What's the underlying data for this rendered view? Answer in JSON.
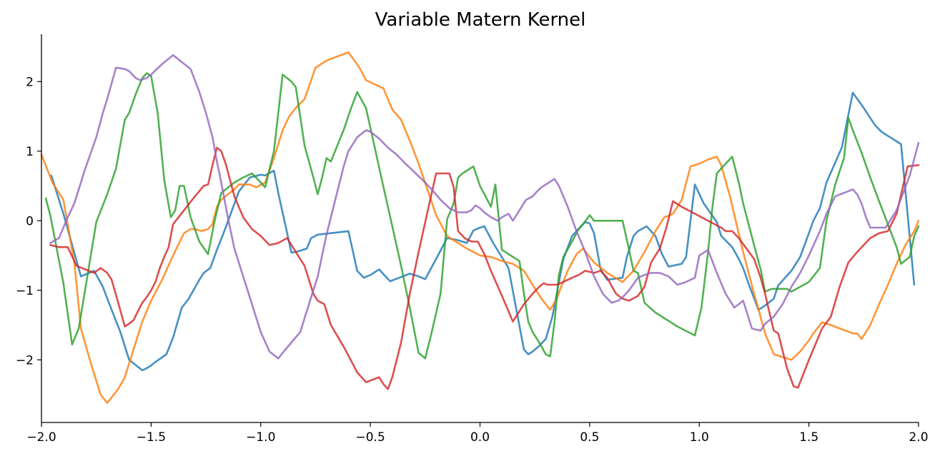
{
  "chart_data": {
    "type": "line",
    "title": "Variable Matern Kernel",
    "xlabel": "",
    "ylabel": "",
    "xlim": [
      -2.0,
      2.0
    ],
    "ylim": [
      -2.9,
      2.68
    ],
    "grid": false,
    "x_ticks": [
      -2.0,
      -1.5,
      -1.0,
      -0.5,
      0.0,
      0.5,
      1.0,
      1.5,
      2.0
    ],
    "x_tick_labels": [
      "−2.0",
      "−1.5",
      "−1.0",
      "−0.5",
      "0.0",
      "0.5",
      "1.0",
      "1.5",
      "2.0"
    ],
    "y_ticks": [
      -2,
      -1,
      0,
      1,
      2
    ],
    "y_tick_labels": [
      "−2",
      "−1",
      "0",
      "1",
      "2"
    ],
    "colors": {
      "blue": "#1f77b4",
      "orange": "#ff7f0e",
      "green": "#2ca02c",
      "red": "#d62728",
      "purple": "#9467bd"
    },
    "series": [
      {
        "color": "#1f77b4",
        "x": [
          -1.955,
          -1.9,
          -1.82,
          -1.76,
          -1.72,
          -1.69,
          -1.64,
          -1.6,
          -1.54,
          -1.52,
          -1.5,
          -1.48,
          -1.43,
          -1.4,
          -1.36,
          -1.33,
          -1.28,
          -1.26,
          -1.23,
          -1.2,
          -1.16,
          -1.1,
          -1.05,
          -1.0,
          -0.98,
          -0.94,
          -0.92,
          -0.86,
          -0.83,
          -0.79,
          -0.77,
          -0.74,
          -0.6,
          -0.56,
          -0.53,
          -0.5,
          -0.46,
          -0.44,
          -0.41,
          -0.36,
          -0.32,
          -0.28,
          -0.25,
          -0.2,
          -0.15,
          -0.1,
          -0.06,
          -0.03,
          0.0,
          0.02,
          0.06,
          0.13,
          0.2,
          0.22,
          0.24,
          0.27,
          0.3,
          0.33,
          0.38,
          0.42,
          0.46,
          0.48,
          0.5,
          0.52,
          0.55,
          0.58,
          0.65,
          0.67,
          0.7,
          0.72,
          0.76,
          0.8,
          0.83,
          0.86,
          0.92,
          0.94,
          0.98,
          1.02,
          1.08,
          1.1,
          1.15,
          1.18,
          1.2,
          1.23,
          1.27,
          1.3,
          1.34,
          1.36,
          1.42,
          1.46,
          1.5,
          1.52,
          1.55,
          1.58,
          1.65,
          1.7,
          1.75,
          1.8,
          1.83,
          1.87,
          1.92,
          1.98
        ],
        "values": [
          0.65,
          0.1,
          -0.8,
          -0.72,
          -0.95,
          -1.2,
          -1.6,
          -2.0,
          -2.15,
          -2.12,
          -2.08,
          -2.03,
          -1.92,
          -1.68,
          -1.25,
          -1.13,
          -0.85,
          -0.75,
          -0.68,
          -0.42,
          -0.1,
          0.42,
          0.62,
          0.66,
          0.65,
          0.72,
          0.4,
          -0.46,
          -0.44,
          -0.4,
          -0.25,
          -0.2,
          -0.15,
          -0.72,
          -0.82,
          -0.78,
          -0.7,
          -0.77,
          -0.87,
          -0.81,
          -0.76,
          -0.8,
          -0.84,
          -0.55,
          -0.25,
          -0.28,
          -0.32,
          -0.14,
          -0.1,
          -0.08,
          -0.32,
          -0.68,
          -1.85,
          -1.92,
          -1.88,
          -1.8,
          -1.7,
          -1.38,
          -0.55,
          -0.22,
          -0.08,
          -0.02,
          -0.04,
          -0.18,
          -0.7,
          -0.85,
          -0.82,
          -0.52,
          -0.22,
          -0.15,
          -0.08,
          -0.22,
          -0.48,
          -0.66,
          -0.62,
          -0.52,
          0.52,
          0.25,
          -0.02,
          -0.22,
          -0.38,
          -0.55,
          -0.68,
          -0.95,
          -1.28,
          -1.22,
          -1.12,
          -0.93,
          -0.72,
          -0.52,
          -0.18,
          0.0,
          0.18,
          0.55,
          1.05,
          1.84,
          1.62,
          1.38,
          1.28,
          1.2,
          1.1,
          -0.92
        ]
      },
      {
        "color": "#ff7f0e",
        "x": [
          -2.0,
          -1.95,
          -1.9,
          -1.85,
          -1.82,
          -1.77,
          -1.73,
          -1.7,
          -1.65,
          -1.62,
          -1.58,
          -1.54,
          -1.5,
          -1.45,
          -1.4,
          -1.35,
          -1.32,
          -1.3,
          -1.27,
          -1.24,
          -1.22,
          -1.2,
          -1.18,
          -1.15,
          -1.12,
          -1.1,
          -1.05,
          -1.02,
          -0.98,
          -0.94,
          -0.9,
          -0.87,
          -0.84,
          -0.8,
          -0.75,
          -0.7,
          -0.66,
          -0.6,
          -0.55,
          -0.52,
          -0.44,
          -0.4,
          -0.36,
          -0.32,
          -0.28,
          -0.24,
          -0.2,
          -0.15,
          -0.1,
          -0.06,
          0.0,
          0.05,
          0.1,
          0.15,
          0.18,
          0.2,
          0.24,
          0.28,
          0.32,
          0.35,
          0.37,
          0.4,
          0.44,
          0.47,
          0.5,
          0.52,
          0.58,
          0.65,
          0.7,
          0.75,
          0.8,
          0.84,
          0.86,
          0.88,
          0.92,
          0.96,
          1.0,
          1.04,
          1.08,
          1.1,
          1.14,
          1.2,
          1.25,
          1.3,
          1.34,
          1.38,
          1.42,
          1.46,
          1.5,
          1.52,
          1.56,
          1.6,
          1.65,
          1.7,
          1.72,
          1.74,
          1.78,
          1.82,
          1.86,
          1.9,
          1.94,
          1.98,
          2.0
        ],
        "values": [
          0.95,
          0.55,
          0.3,
          -0.6,
          -1.55,
          -2.1,
          -2.5,
          -2.62,
          -2.42,
          -2.25,
          -1.85,
          -1.45,
          -1.15,
          -0.85,
          -0.5,
          -0.18,
          -0.12,
          -0.12,
          -0.15,
          -0.12,
          -0.05,
          0.2,
          0.3,
          0.38,
          0.45,
          0.52,
          0.52,
          0.48,
          0.55,
          0.9,
          1.3,
          1.5,
          1.62,
          1.75,
          2.2,
          2.3,
          2.35,
          2.42,
          2.2,
          2.02,
          1.9,
          1.6,
          1.45,
          1.15,
          0.82,
          0.45,
          0.08,
          -0.22,
          -0.32,
          -0.4,
          -0.5,
          -0.52,
          -0.58,
          -0.62,
          -0.68,
          -0.72,
          -0.92,
          -1.12,
          -1.28,
          -1.12,
          -0.95,
          -0.72,
          -0.48,
          -0.4,
          -0.52,
          -0.6,
          -0.75,
          -0.88,
          -0.72,
          -0.45,
          -0.15,
          0.05,
          0.07,
          0.1,
          0.3,
          0.78,
          0.82,
          0.88,
          0.92,
          0.8,
          0.35,
          -0.45,
          -1.05,
          -1.62,
          -1.92,
          -1.96,
          -2.0,
          -1.88,
          -1.72,
          -1.62,
          -1.46,
          -1.5,
          -1.56,
          -1.62,
          -1.62,
          -1.7,
          -1.5,
          -1.2,
          -0.92,
          -0.62,
          -0.35,
          -0.15,
          0.0
        ]
      },
      {
        "color": "#2ca02c",
        "x": [
          -1.98,
          -1.96,
          -1.9,
          -1.86,
          -1.83,
          -1.8,
          -1.75,
          -1.7,
          -1.66,
          -1.62,
          -1.6,
          -1.57,
          -1.54,
          -1.52,
          -1.5,
          -1.47,
          -1.44,
          -1.41,
          -1.39,
          -1.37,
          -1.35,
          -1.32,
          -1.28,
          -1.24,
          -1.21,
          -1.18,
          -1.12,
          -1.08,
          -1.04,
          -1.0,
          -0.98,
          -0.94,
          -0.9,
          -0.86,
          -0.84,
          -0.8,
          -0.76,
          -0.74,
          -0.72,
          -0.7,
          -0.68,
          -0.62,
          -0.59,
          -0.56,
          -0.52,
          -0.48,
          -0.44,
          -0.4,
          -0.36,
          -0.32,
          -0.28,
          -0.25,
          -0.22,
          -0.18,
          -0.15,
          -0.12,
          -0.1,
          -0.08,
          -0.06,
          -0.03,
          0.0,
          0.02,
          0.05,
          0.07,
          0.1,
          0.15,
          0.18,
          0.2,
          0.22,
          0.24,
          0.27,
          0.3,
          0.32,
          0.34,
          0.36,
          0.38,
          0.42,
          0.45,
          0.47,
          0.5,
          0.52,
          0.55,
          0.6,
          0.65,
          0.68,
          0.7,
          0.72,
          0.75,
          0.8,
          0.85,
          0.9,
          0.98,
          1.01,
          1.04,
          1.06,
          1.08,
          1.12,
          1.15,
          1.18,
          1.2,
          1.25,
          1.28,
          1.3,
          1.33,
          1.38,
          1.4,
          1.42,
          1.46,
          1.5,
          1.52,
          1.55,
          1.58,
          1.62,
          1.66,
          1.68,
          1.7,
          1.74,
          1.78,
          1.82,
          1.86,
          1.9,
          1.92,
          1.96,
          1.98,
          2.0
        ],
        "values": [
          0.32,
          0.08,
          -0.9,
          -1.78,
          -1.55,
          -0.98,
          -0.02,
          0.38,
          0.75,
          1.45,
          1.55,
          1.82,
          2.05,
          2.12,
          2.08,
          1.55,
          0.58,
          0.05,
          0.15,
          0.5,
          0.5,
          0.05,
          -0.3,
          -0.48,
          0.0,
          0.4,
          0.55,
          0.62,
          0.68,
          0.55,
          0.48,
          1.0,
          2.1,
          2.0,
          1.92,
          1.08,
          0.62,
          0.38,
          0.62,
          0.9,
          0.85,
          1.32,
          1.6,
          1.85,
          1.62,
          1.05,
          0.48,
          -0.08,
          -0.65,
          -1.25,
          -1.9,
          -1.98,
          -1.6,
          -1.05,
          0.02,
          0.25,
          0.62,
          0.68,
          0.72,
          0.78,
          0.5,
          0.38,
          0.2,
          0.52,
          -0.42,
          -0.52,
          -0.58,
          -1.05,
          -1.45,
          -1.6,
          -1.75,
          -1.92,
          -1.95,
          -1.45,
          -0.78,
          -0.52,
          -0.3,
          -0.12,
          -0.05,
          0.08,
          0.0,
          0.0,
          0.0,
          0.0,
          -0.42,
          -0.72,
          -0.75,
          -1.18,
          -1.32,
          -1.42,
          -1.52,
          -1.65,
          -1.25,
          -0.45,
          0.2,
          0.68,
          0.82,
          0.92,
          0.55,
          0.25,
          -0.35,
          -0.7,
          -1.02,
          -0.98,
          -0.98,
          -0.98,
          -1.02,
          -0.95,
          -0.88,
          -0.8,
          -0.68,
          0.0,
          0.52,
          0.9,
          1.48,
          1.3,
          0.98,
          0.62,
          0.28,
          -0.05,
          -0.38,
          -0.62,
          -0.52,
          -0.22,
          -0.08
        ]
      },
      {
        "color": "#d62728",
        "x": [
          -1.96,
          -1.92,
          -1.88,
          -1.84,
          -1.8,
          -1.76,
          -1.73,
          -1.7,
          -1.68,
          -1.65,
          -1.62,
          -1.6,
          -1.58,
          -1.56,
          -1.54,
          -1.52,
          -1.5,
          -1.48,
          -1.46,
          -1.44,
          -1.42,
          -1.4,
          -1.35,
          -1.3,
          -1.26,
          -1.24,
          -1.22,
          -1.2,
          -1.18,
          -1.16,
          -1.12,
          -1.08,
          -1.04,
          -1.0,
          -0.96,
          -0.92,
          -0.88,
          -0.84,
          -0.8,
          -0.76,
          -0.74,
          -0.71,
          -0.68,
          -0.62,
          -0.56,
          -0.52,
          -0.46,
          -0.44,
          -0.42,
          -0.4,
          -0.36,
          -0.32,
          -0.28,
          -0.24,
          -0.2,
          -0.18,
          -0.14,
          -0.12,
          -0.1,
          -0.07,
          -0.04,
          -0.01,
          0.02,
          0.05,
          0.1,
          0.15,
          0.2,
          0.24,
          0.27,
          0.29,
          0.31,
          0.35,
          0.38,
          0.42,
          0.45,
          0.48,
          0.52,
          0.55,
          0.58,
          0.62,
          0.65,
          0.68,
          0.72,
          0.75,
          0.78,
          0.82,
          0.85,
          0.88,
          0.92,
          0.98,
          1.04,
          1.1,
          1.12,
          1.15,
          1.18,
          1.22,
          1.25,
          1.28,
          1.3,
          1.32,
          1.34,
          1.36,
          1.4,
          1.43,
          1.45,
          1.5,
          1.56,
          1.6,
          1.64,
          1.68,
          1.72,
          1.78,
          1.82,
          1.86,
          1.9,
          1.95,
          2.0
        ],
        "values": [
          -0.35,
          -0.38,
          -0.38,
          -0.65,
          -0.7,
          -0.75,
          -0.68,
          -0.75,
          -0.85,
          -1.18,
          -1.52,
          -1.48,
          -1.43,
          -1.3,
          -1.18,
          -1.1,
          -1.0,
          -0.88,
          -0.68,
          -0.52,
          -0.38,
          -0.05,
          0.15,
          0.35,
          0.5,
          0.52,
          0.8,
          1.05,
          1.0,
          0.82,
          0.35,
          0.05,
          -0.12,
          -0.22,
          -0.35,
          -0.32,
          -0.25,
          -0.45,
          -0.65,
          -1.05,
          -1.15,
          -1.2,
          -1.5,
          -1.82,
          -2.18,
          -2.32,
          -2.25,
          -2.35,
          -2.42,
          -2.25,
          -1.75,
          -1.05,
          -0.45,
          0.12,
          0.68,
          0.68,
          0.68,
          0.48,
          -0.15,
          -0.25,
          -0.3,
          -0.3,
          -0.48,
          -0.72,
          -1.08,
          -1.45,
          -1.2,
          -1.05,
          -0.95,
          -0.9,
          -0.92,
          -0.92,
          -0.88,
          -0.82,
          -0.78,
          -0.72,
          -0.75,
          -0.72,
          -0.82,
          -1.05,
          -1.12,
          -1.15,
          -1.08,
          -0.95,
          -0.6,
          -0.4,
          -0.1,
          0.28,
          0.2,
          0.1,
          0.0,
          -0.1,
          -0.15,
          -0.15,
          -0.25,
          -0.42,
          -0.55,
          -0.82,
          -1.05,
          -1.32,
          -1.58,
          -1.62,
          -2.12,
          -2.38,
          -2.4,
          -2.0,
          -1.55,
          -1.38,
          -0.95,
          -0.6,
          -0.45,
          -0.25,
          -0.18,
          -0.15,
          0.1,
          0.78,
          0.8
        ]
      },
      {
        "color": "#9467bd",
        "x": [
          -1.96,
          -1.92,
          -1.88,
          -1.85,
          -1.8,
          -1.75,
          -1.72,
          -1.7,
          -1.66,
          -1.62,
          -1.6,
          -1.57,
          -1.55,
          -1.52,
          -1.5,
          -1.45,
          -1.4,
          -1.36,
          -1.32,
          -1.28,
          -1.25,
          -1.22,
          -1.2,
          -1.18,
          -1.15,
          -1.12,
          -1.08,
          -1.04,
          -1.0,
          -0.96,
          -0.92,
          -0.9,
          -0.86,
          -0.82,
          -0.78,
          -0.74,
          -0.72,
          -0.7,
          -0.66,
          -0.62,
          -0.6,
          -0.56,
          -0.52,
          -0.5,
          -0.46,
          -0.42,
          -0.38,
          -0.34,
          -0.3,
          -0.26,
          -0.22,
          -0.18,
          -0.14,
          -0.1,
          -0.06,
          -0.04,
          -0.02,
          0.0,
          0.02,
          0.05,
          0.08,
          0.1,
          0.13,
          0.15,
          0.18,
          0.21,
          0.24,
          0.26,
          0.28,
          0.3,
          0.33,
          0.34,
          0.36,
          0.4,
          0.44,
          0.48,
          0.52,
          0.56,
          0.6,
          0.63,
          0.65,
          0.68,
          0.72,
          0.75,
          0.78,
          0.82,
          0.86,
          0.9,
          0.94,
          0.98,
          1.0,
          1.04,
          1.08,
          1.12,
          1.16,
          1.2,
          1.24,
          1.28,
          1.3,
          1.34,
          1.38,
          1.42,
          1.46,
          1.5,
          1.55,
          1.58,
          1.62,
          1.66,
          1.7,
          1.72,
          1.74,
          1.76,
          1.78,
          1.82,
          1.85,
          1.9,
          1.96,
          2.0
        ],
        "values": [
          -0.32,
          -0.25,
          0.05,
          0.25,
          0.75,
          1.2,
          1.55,
          1.75,
          2.2,
          2.18,
          2.15,
          2.05,
          2.02,
          2.05,
          2.1,
          2.25,
          2.38,
          2.28,
          2.18,
          1.85,
          1.55,
          1.2,
          0.85,
          0.55,
          0.05,
          -0.4,
          -0.8,
          -1.2,
          -1.6,
          -1.88,
          -1.98,
          -1.9,
          -1.75,
          -1.6,
          -1.2,
          -0.8,
          -0.5,
          -0.2,
          0.3,
          0.8,
          1.0,
          1.2,
          1.3,
          1.28,
          1.18,
          1.05,
          0.95,
          0.82,
          0.7,
          0.58,
          0.45,
          0.3,
          0.18,
          0.12,
          0.12,
          0.15,
          0.22,
          0.18,
          0.12,
          0.05,
          0.0,
          0.05,
          0.1,
          0.0,
          0.15,
          0.3,
          0.35,
          0.42,
          0.48,
          0.52,
          0.58,
          0.6,
          0.5,
          0.2,
          -0.15,
          -0.45,
          -0.8,
          -1.05,
          -1.18,
          -1.15,
          -1.1,
          -1.0,
          -0.82,
          -0.78,
          -0.75,
          -0.75,
          -0.8,
          -0.92,
          -0.88,
          -0.82,
          -0.5,
          -0.42,
          -0.75,
          -1.05,
          -1.25,
          -1.15,
          -1.55,
          -1.58,
          -1.48,
          -1.38,
          -1.2,
          -0.95,
          -0.75,
          -0.5,
          -0.15,
          0.1,
          0.35,
          0.4,
          0.45,
          0.38,
          0.25,
          0.05,
          -0.1,
          -0.1,
          -0.1,
          0.15,
          0.65,
          1.12
        ]
      }
    ]
  }
}
